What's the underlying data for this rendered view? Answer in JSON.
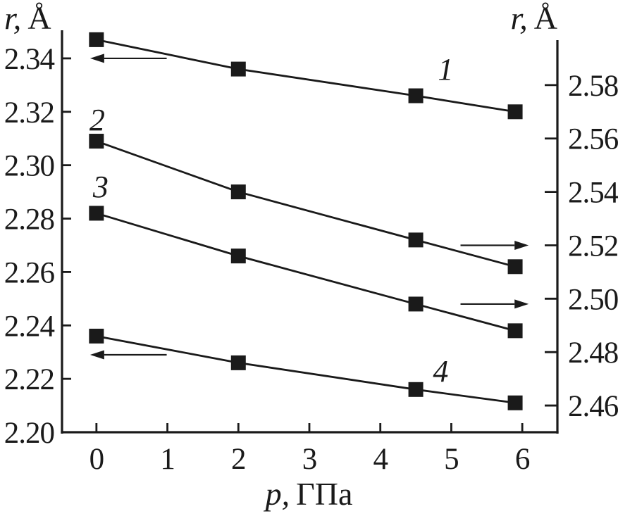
{
  "figure": {
    "background": "#ffffff",
    "ink": "#1a1a1a"
  },
  "chart_data": {
    "type": "line",
    "x_axis": {
      "var_label": "p,",
      "unit_label": "ГПа",
      "range": [
        -0.485,
        6.495
      ],
      "ticks": [
        {
          "v": 0,
          "label": "0"
        },
        {
          "v": 1,
          "label": "1"
        },
        {
          "v": 2,
          "label": "2"
        },
        {
          "v": 3,
          "label": "3"
        },
        {
          "v": 4,
          "label": "4"
        },
        {
          "v": 5,
          "label": "5"
        },
        {
          "v": 6,
          "label": "6"
        }
      ]
    },
    "left_axis": {
      "var_label": "r,",
      "unit_label": "Å",
      "range": [
        2.2,
        2.35
      ],
      "ticks": [
        {
          "v": 2.2,
          "label": "2.20"
        },
        {
          "v": 2.22,
          "label": "2.22"
        },
        {
          "v": 2.24,
          "label": "2.24"
        },
        {
          "v": 2.26,
          "label": "2.26"
        },
        {
          "v": 2.28,
          "label": "2.28"
        },
        {
          "v": 2.3,
          "label": "2.30"
        },
        {
          "v": 2.32,
          "label": "2.32"
        },
        {
          "v": 2.34,
          "label": "2.34"
        }
      ]
    },
    "right_axis": {
      "var_label": "r,",
      "unit_label": "Å",
      "range": [
        2.45,
        2.6
      ],
      "ticks": [
        {
          "v": 2.46,
          "label": "2.46"
        },
        {
          "v": 2.48,
          "label": "2.48"
        },
        {
          "v": 2.5,
          "label": "2.50"
        },
        {
          "v": 2.52,
          "label": "2.52"
        },
        {
          "v": 2.54,
          "label": "2.54"
        },
        {
          "v": 2.56,
          "label": "2.56"
        },
        {
          "v": 2.58,
          "label": "2.58"
        }
      ]
    },
    "x": [
      0,
      2,
      4.5,
      5.9
    ],
    "series": [
      {
        "name": "1",
        "axis": "left",
        "values": [
          2.347,
          2.336,
          2.326,
          2.32
        ]
      },
      {
        "name": "2",
        "axis": "right",
        "values": [
          2.559,
          2.54,
          2.522,
          2.512
        ]
      },
      {
        "name": "3",
        "axis": "right",
        "values": [
          2.532,
          2.516,
          2.498,
          2.488
        ]
      },
      {
        "name": "4",
        "axis": "left",
        "values": [
          2.236,
          2.226,
          2.216,
          2.211
        ]
      }
    ],
    "series_labels": [
      {
        "text": "1",
        "x": 4.92,
        "axis": "left",
        "value": 2.336
      },
      {
        "text": "2",
        "x": 0.01,
        "axis": "left",
        "value": 2.317
      },
      {
        "text": "3",
        "x": 0.06,
        "axis": "left",
        "value": 2.292
      },
      {
        "text": "4",
        "x": 4.85,
        "axis": "left",
        "value": 2.223
      }
    ],
    "arrows": [
      {
        "series": "1",
        "dir": "left",
        "axis": "left",
        "value": 2.34,
        "x_from": 0.99,
        "x_to": -0.089
      },
      {
        "series": "4",
        "dir": "left",
        "axis": "left",
        "value": 2.229,
        "x_from": 0.99,
        "x_to": -0.089
      },
      {
        "series": "2",
        "dir": "right",
        "axis": "right",
        "value": 2.52,
        "x_from": 5.13,
        "x_to": 6.09
      },
      {
        "series": "3",
        "dir": "right",
        "axis": "right",
        "value": 2.498,
        "x_from": 5.13,
        "x_to": 6.09
      }
    ]
  }
}
